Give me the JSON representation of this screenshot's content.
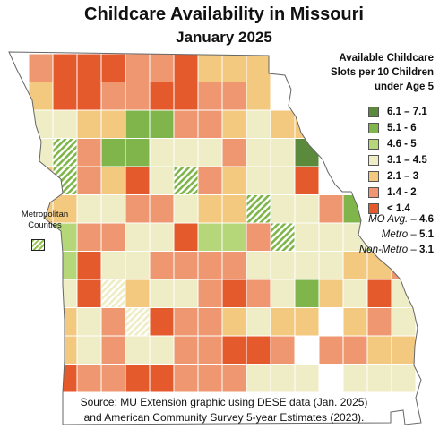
{
  "title": "Childcare Availability in Missouri",
  "subtitle": "January 2025",
  "legend": {
    "heading_lines": [
      "Available Childcare",
      "Slots per 10 Children",
      "under Age 5"
    ],
    "items": [
      {
        "label": "6.1 – 7.1",
        "color": "#5c8a3c"
      },
      {
        "label": "5.1 - 6",
        "color": "#7fb54a"
      },
      {
        "label": "4.6 - 5",
        "color": "#b5d77a"
      },
      {
        "label": "3.1 – 4.5",
        "color": "#eeedc6"
      },
      {
        "label": "2.1 – 3",
        "color": "#f2c97e"
      },
      {
        "label": "1.4 - 2",
        "color": "#ee9770"
      },
      {
        "label": "< 1.4",
        "color": "#e55a2c"
      }
    ]
  },
  "averages": [
    {
      "label": "MO Avg.",
      "value": "4.6"
    },
    {
      "label": "Metro",
      "value": "5.1"
    },
    {
      "label": "Non-Metro",
      "value": "3.1"
    }
  ],
  "metro_label_lines": [
    "Metropolitan",
    "Counties"
  ],
  "source_lines": [
    "Source: MU Extension graphic using DESE data (Jan. 2025)",
    "and American Community Survey 5-year Estimates (2023)."
  ]
}
